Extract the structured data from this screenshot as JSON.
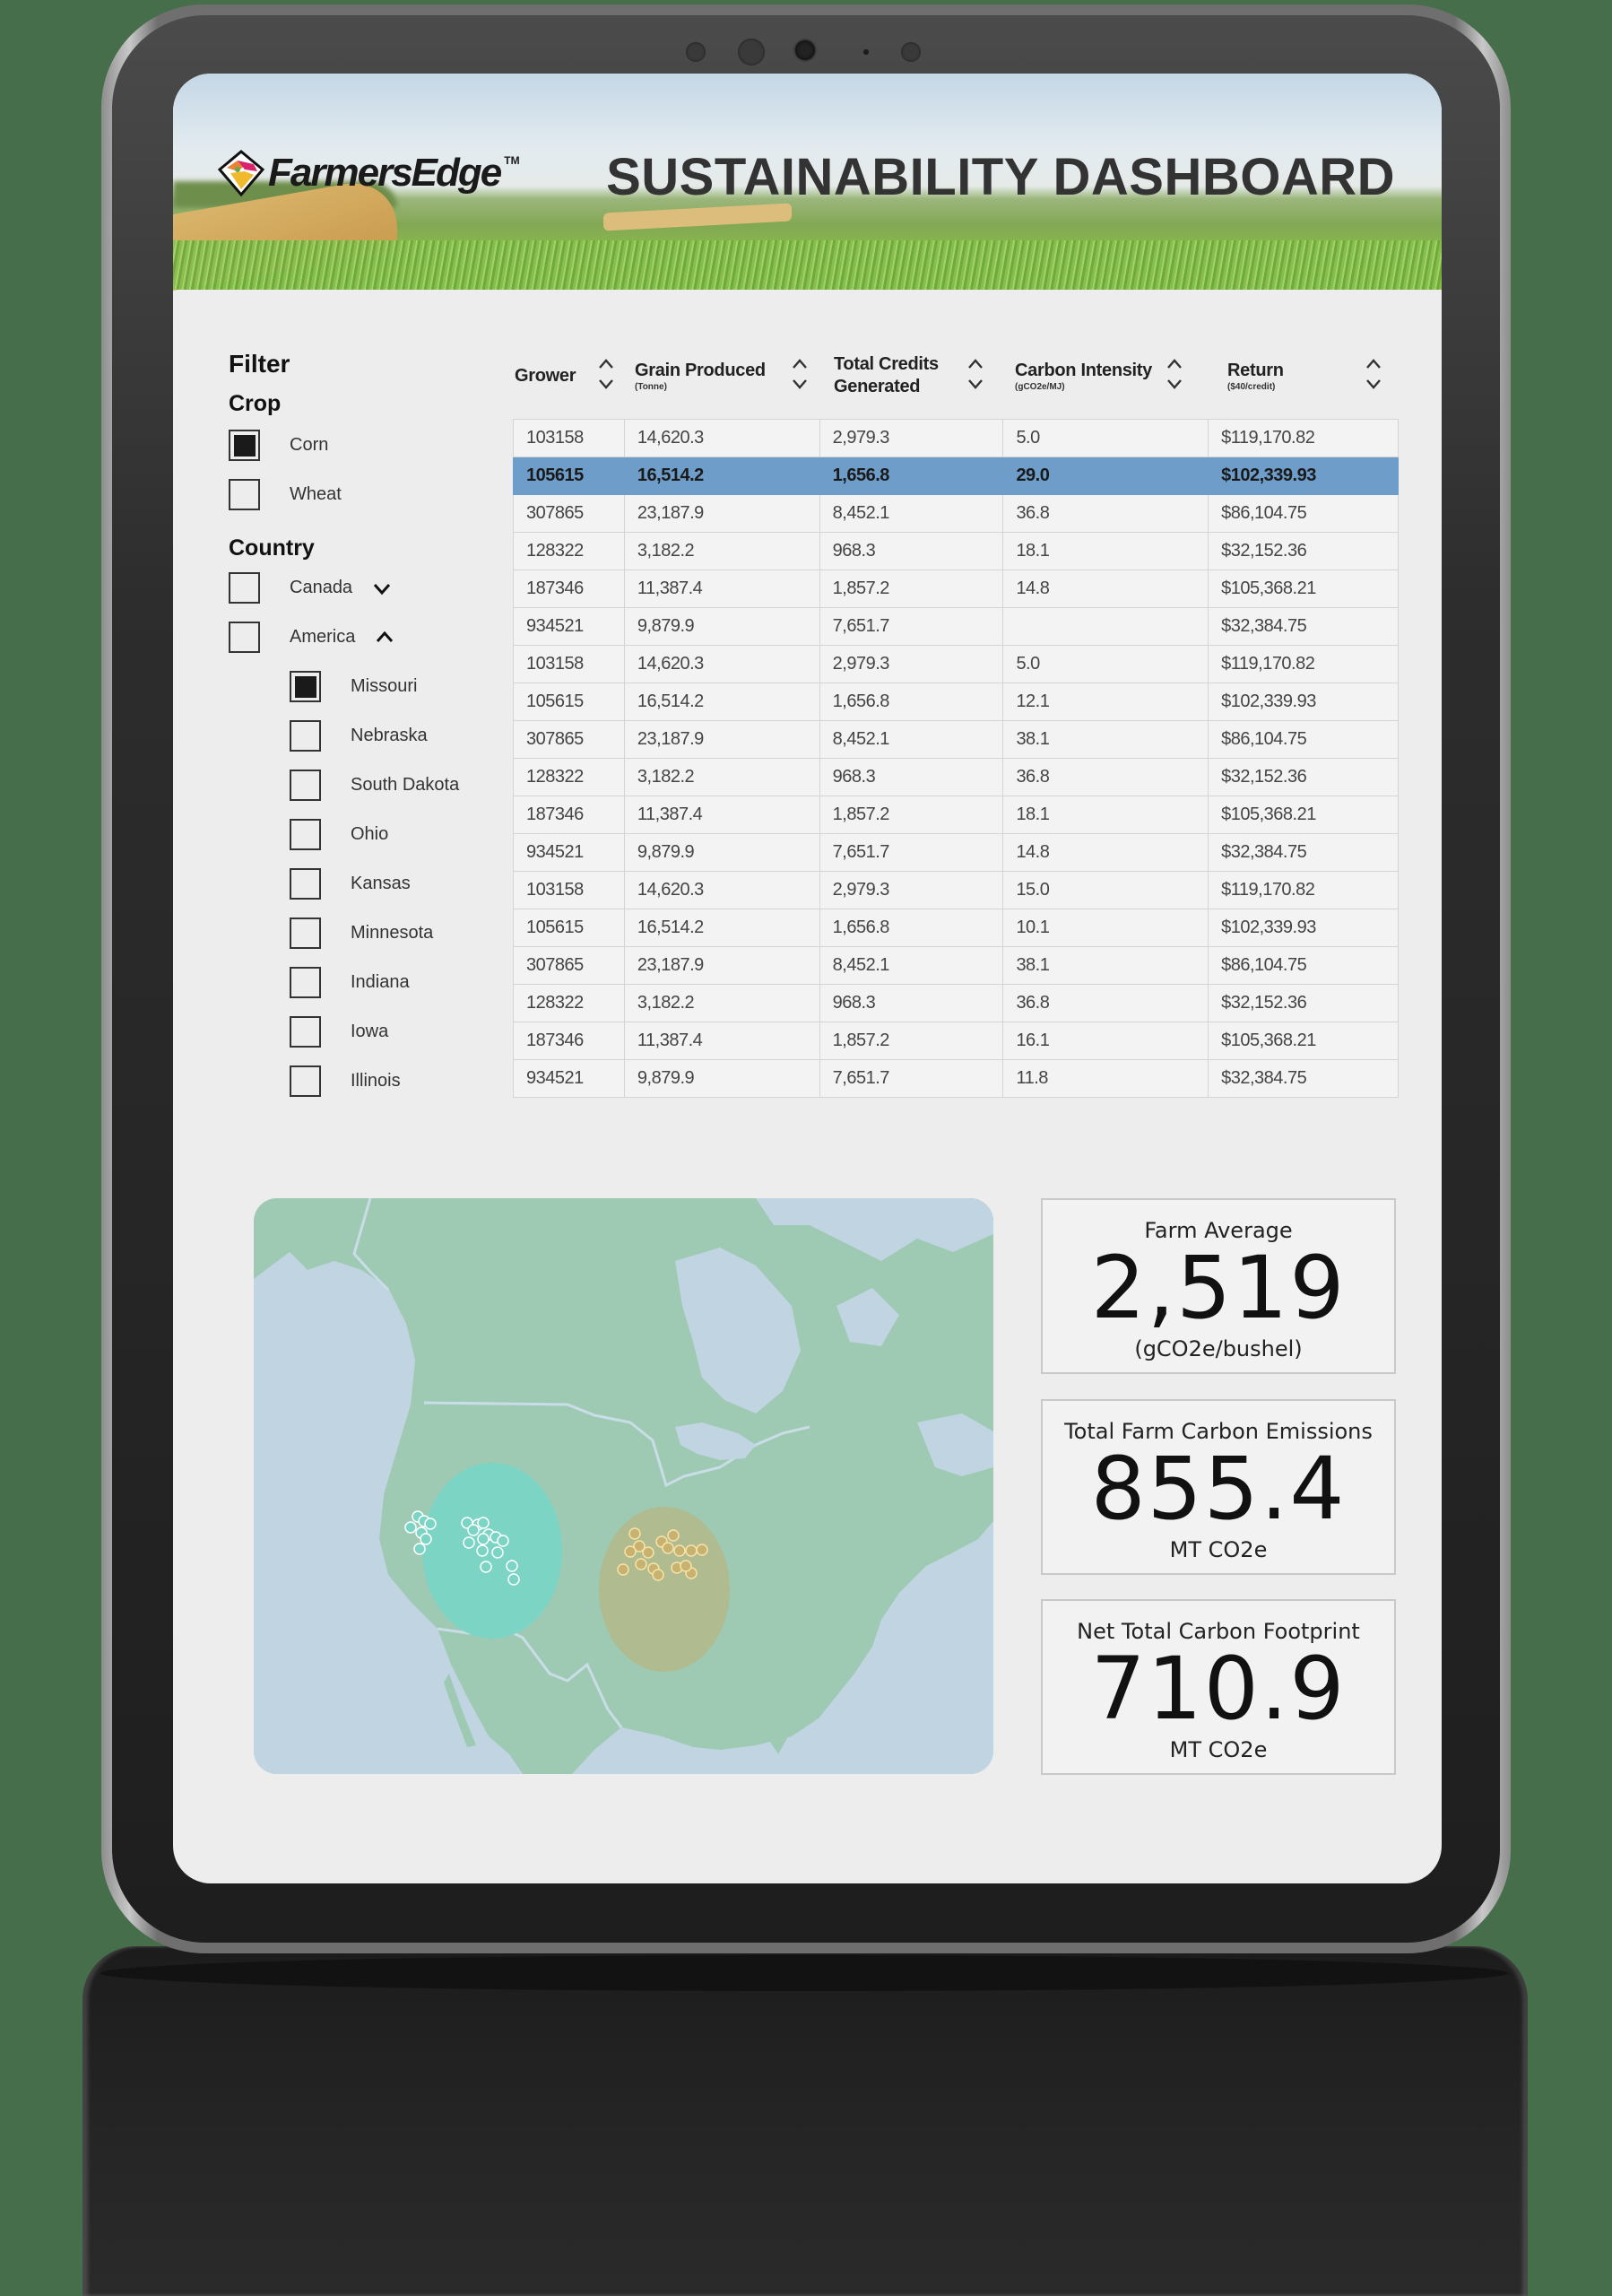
{
  "header": {
    "logo_text": "FarmersEdge",
    "logo_tm": "TM",
    "title": "SUSTAINABILITY DASHBOARD"
  },
  "filter": {
    "title": "Filter",
    "crop": {
      "heading": "Crop",
      "options": [
        {
          "label": "Corn",
          "checked": true
        },
        {
          "label": "Wheat",
          "checked": false
        }
      ]
    },
    "country": {
      "heading": "Country",
      "options": [
        {
          "label": "Canada",
          "checked": false,
          "expanded": false,
          "chevron": "chevron-down-icon"
        },
        {
          "label": "America",
          "checked": false,
          "expanded": true,
          "chevron": "chevron-up-icon"
        }
      ],
      "states": [
        {
          "label": "Missouri",
          "checked": true
        },
        {
          "label": "Nebraska",
          "checked": false
        },
        {
          "label": "South Dakota",
          "checked": false
        },
        {
          "label": "Ohio",
          "checked": false
        },
        {
          "label": "Kansas",
          "checked": false
        },
        {
          "label": "Minnesota",
          "checked": false
        },
        {
          "label": "Indiana",
          "checked": false
        },
        {
          "label": "Iowa",
          "checked": false
        },
        {
          "label": "Illinois",
          "checked": false
        }
      ]
    }
  },
  "table": {
    "columns": [
      {
        "label": "Grower",
        "sub": ""
      },
      {
        "label": "Grain Produced",
        "sub": "(Tonne)"
      },
      {
        "label": "Total Credits Generated",
        "line1": "Total Credits",
        "line2": "Generated",
        "sub": ""
      },
      {
        "label": "Carbon Intensity",
        "sub": "(gCO2e/MJ)"
      },
      {
        "label": "Return",
        "sub": "($40/credit)"
      }
    ],
    "selected_row_index": 1,
    "selected_color": "#6e9dc9",
    "rows": [
      [
        "103158",
        "14,620.3",
        "2,979.3",
        "5.0",
        "$119,170.82"
      ],
      [
        "105615",
        "16,514.2",
        "1,656.8",
        "29.0",
        "$102,339.93"
      ],
      [
        "307865",
        "23,187.9",
        "8,452.1",
        "36.8",
        "$86,104.75"
      ],
      [
        "128322",
        "3,182.2",
        "968.3",
        "18.1",
        "$32,152.36"
      ],
      [
        "187346",
        "11,387.4",
        "1,857.2",
        "14.8",
        "$105,368.21"
      ],
      [
        "934521",
        "9,879.9",
        "7,651.7",
        "",
        "$32,384.75"
      ],
      [
        "103158",
        "14,620.3",
        "2,979.3",
        "5.0",
        "$119,170.82"
      ],
      [
        "105615",
        "16,514.2",
        "1,656.8",
        "12.1",
        "$102,339.93"
      ],
      [
        "307865",
        "23,187.9",
        "8,452.1",
        "38.1",
        "$86,104.75"
      ],
      [
        "128322",
        "3,182.2",
        "968.3",
        "36.8",
        "$32,152.36"
      ],
      [
        "187346",
        "11,387.4",
        "1,857.2",
        "18.1",
        "$105,368.21"
      ],
      [
        "934521",
        "9,879.9",
        "7,651.7",
        "14.8",
        "$32,384.75"
      ],
      [
        "103158",
        "14,620.3",
        "2,979.3",
        "15.0",
        "$119,170.82"
      ],
      [
        "105615",
        "16,514.2",
        "1,656.8",
        "10.1",
        "$102,339.93"
      ],
      [
        "307865",
        "23,187.9",
        "8,452.1",
        "38.1",
        "$86,104.75"
      ],
      [
        "128322",
        "3,182.2",
        "968.3",
        "36.8",
        "$32,152.36"
      ],
      [
        "187346",
        "11,387.4",
        "1,857.2",
        "16.1",
        "$105,368.21"
      ],
      [
        "934521",
        "9,879.9",
        "7,651.7",
        "11.8",
        "$32,384.75"
      ]
    ]
  },
  "map": {
    "land_color": "#9ecab4",
    "water_color": "#c0d4e2",
    "clusters": [
      {
        "name": "west-cluster",
        "color": "#7bd4c4"
      },
      {
        "name": "south-cluster",
        "color": "#b1b98e"
      }
    ]
  },
  "stats": [
    {
      "title": "Farm Average",
      "value": "2,519",
      "unit": "(gCO2e/bushel)"
    },
    {
      "title": "Total Farm Carbon Emissions",
      "value": "855.4",
      "unit": "MT CO2e"
    },
    {
      "title": "Net Total Carbon Footprint",
      "value": "710.9",
      "unit": "MT CO2e"
    }
  ]
}
